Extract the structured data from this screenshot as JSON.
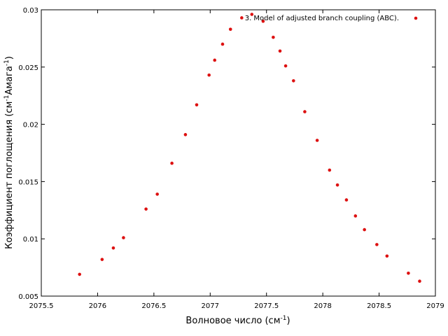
{
  "chart_data": {
    "type": "scatter",
    "xlabel": "Волновое число (см",
    "xlabel_sup": "-1",
    "xlabel_end": ")",
    "ylabel": "Коэффициент поглощения (см",
    "ylabel_sup1": "-1",
    "ylabel_mid": "Амага",
    "ylabel_sup2": "-1",
    "ylabel_end": ")",
    "xlim": [
      2075.5,
      2079
    ],
    "ylim": [
      0.005,
      0.03
    ],
    "xticks": [
      2075.5,
      2076,
      2076.5,
      2077,
      2077.5,
      2078,
      2078.5,
      2079
    ],
    "xtick_labels": [
      "2075.5",
      "2076",
      "2076.5",
      "2077",
      "2077.5",
      "2078",
      "2078.5",
      "2079"
    ],
    "yticks": [
      0.005,
      0.01,
      0.015,
      0.02,
      0.025,
      0.03
    ],
    "ytick_labels": [
      "0.005",
      "0.01",
      "0.015",
      "0.02",
      "0.025",
      "0.03"
    ],
    "grid": false,
    "legend_position": "top-right",
    "series": [
      {
        "name": "3. Model of adjusted branch coupling (ABC).",
        "color": "#dd1111",
        "points": [
          [
            2075.84,
            0.0069
          ],
          [
            2076.04,
            0.0082
          ],
          [
            2076.14,
            0.0092
          ],
          [
            2076.23,
            0.0101
          ],
          [
            2076.43,
            0.0126
          ],
          [
            2076.53,
            0.0139
          ],
          [
            2076.66,
            0.0166
          ],
          [
            2076.78,
            0.0191
          ],
          [
            2076.88,
            0.0217
          ],
          [
            2076.99,
            0.0243
          ],
          [
            2077.04,
            0.0256
          ],
          [
            2077.11,
            0.027
          ],
          [
            2077.18,
            0.0283
          ],
          [
            2077.28,
            0.0293
          ],
          [
            2077.37,
            0.0296
          ],
          [
            2077.47,
            0.029
          ],
          [
            2077.56,
            0.0276
          ],
          [
            2077.62,
            0.0264
          ],
          [
            2077.67,
            0.0251
          ],
          [
            2077.74,
            0.0238
          ],
          [
            2077.84,
            0.0211
          ],
          [
            2077.95,
            0.0186
          ],
          [
            2078.06,
            0.016
          ],
          [
            2078.13,
            0.0147
          ],
          [
            2078.21,
            0.0134
          ],
          [
            2078.29,
            0.012
          ],
          [
            2078.37,
            0.0108
          ],
          [
            2078.48,
            0.0095
          ],
          [
            2078.57,
            0.0085
          ],
          [
            2078.76,
            0.007
          ],
          [
            2078.86,
            0.0063
          ]
        ]
      }
    ]
  }
}
